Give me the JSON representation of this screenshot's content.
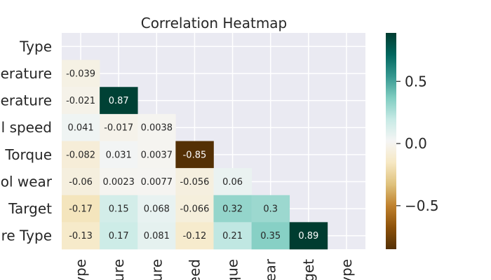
{
  "chart_data": {
    "type": "heatmap",
    "title": "Correlation Heatmap",
    "row_labels": [
      "Type",
      "erature",
      "erature",
      "l speed",
      "Torque",
      "ol wear",
      "Target",
      "re Type"
    ],
    "col_labels": [
      "ype",
      "ure",
      "ure",
      "eed",
      "que",
      "ear",
      "get",
      "ype"
    ],
    "mask": "upper-triangle-and-diagonal",
    "matrix": [
      [
        null,
        null,
        null,
        null,
        null,
        null,
        null,
        null
      ],
      [
        -0.039,
        null,
        null,
        null,
        null,
        null,
        null,
        null
      ],
      [
        -0.021,
        0.87,
        null,
        null,
        null,
        null,
        null,
        null
      ],
      [
        0.041,
        -0.017,
        0.0038,
        null,
        null,
        null,
        null,
        null
      ],
      [
        -0.082,
        0.031,
        0.0037,
        -0.85,
        null,
        null,
        null,
        null
      ],
      [
        -0.06,
        0.0023,
        0.0077,
        -0.056,
        0.06,
        null,
        null,
        null
      ],
      [
        -0.17,
        0.15,
        0.068,
        -0.066,
        0.32,
        0.3,
        null,
        null
      ],
      [
        -0.13,
        0.17,
        0.081,
        -0.12,
        0.21,
        0.35,
        0.89,
        null
      ]
    ],
    "labels": [
      [
        null,
        null,
        null,
        null,
        null,
        null,
        null,
        null
      ],
      [
        "-0.039",
        null,
        null,
        null,
        null,
        null,
        null,
        null
      ],
      [
        "-0.021",
        "0.87",
        null,
        null,
        null,
        null,
        null,
        null
      ],
      [
        "0.041",
        "-0.017",
        "0.0038",
        null,
        null,
        null,
        null,
        null
      ],
      [
        "-0.082",
        "0.031",
        "0.0037",
        "-0.85",
        null,
        null,
        null,
        null
      ],
      [
        "-0.06",
        "0.0023",
        "0.0077",
        "-0.056",
        "0.06",
        null,
        null,
        null
      ],
      [
        "-0.17",
        "0.15",
        "0.068",
        "-0.066",
        "0.32",
        "0.3",
        null,
        null
      ],
      [
        "-0.13",
        "0.17",
        "0.081",
        "-0.12",
        "0.21",
        "0.35",
        "0.89",
        null
      ]
    ],
    "colormap": "BrBG",
    "vmin": -0.85,
    "vmax": 0.89,
    "colorbar": {
      "ticks": [
        -0.5,
        0.0,
        0.5
      ],
      "tick_labels": [
        "−0.5",
        "0.0",
        "0.5"
      ]
    },
    "grid": true
  }
}
